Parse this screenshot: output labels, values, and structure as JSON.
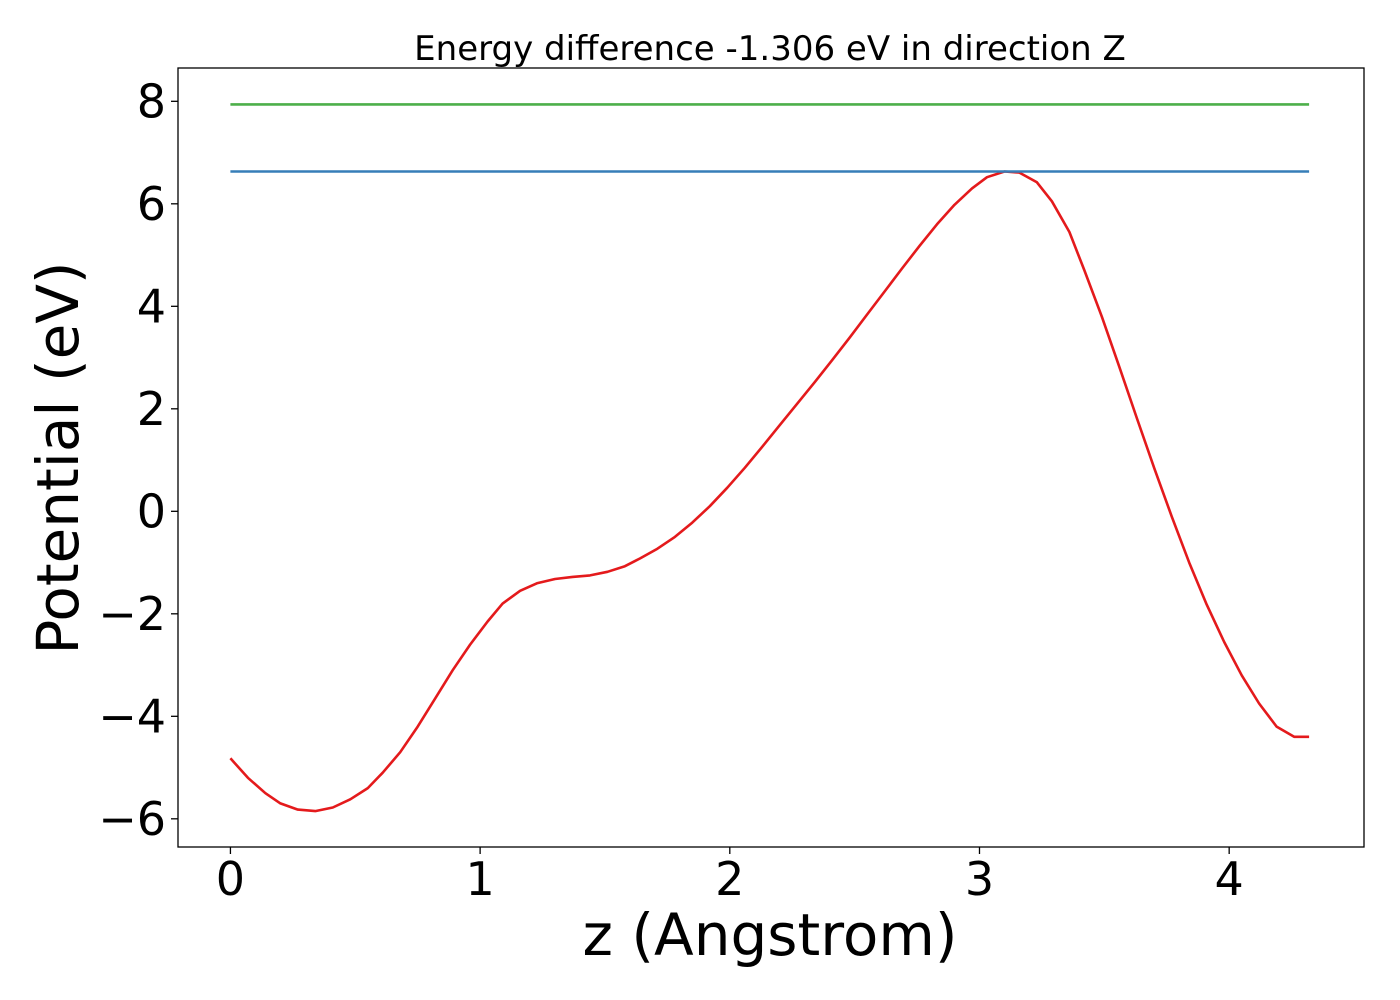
{
  "chart_data": {
    "type": "line",
    "title": "Energy difference -1.306 eV in direction Z",
    "xlabel": "z (Angstrom)",
    "ylabel": "Potential (eV)",
    "xlim": [
      -0.21,
      4.54
    ],
    "ylim": [
      -6.55,
      8.65
    ],
    "xticks": [
      0,
      1,
      2,
      3,
      4
    ],
    "yticks": [
      -6,
      -4,
      -2,
      0,
      2,
      4,
      6,
      8
    ],
    "xtick_labels": [
      "0",
      "1",
      "2",
      "3",
      "4"
    ],
    "ytick_labels": [
      "−6",
      "−4",
      "−2",
      "0",
      "2",
      "4",
      "6",
      "8"
    ],
    "grid": false,
    "series": [
      {
        "color": "#e41a1c",
        "x": [
          0.0,
          0.07,
          0.14,
          0.2,
          0.27,
          0.34,
          0.41,
          0.48,
          0.55,
          0.61,
          0.68,
          0.75,
          0.82,
          0.89,
          0.96,
          1.03,
          1.09,
          1.16,
          1.23,
          1.3,
          1.37,
          1.44,
          1.51,
          1.58,
          1.64,
          1.71,
          1.78,
          1.85,
          1.92,
          1.99,
          2.06,
          2.13,
          2.2,
          2.27,
          2.34,
          2.41,
          2.48,
          2.55,
          2.62,
          2.69,
          2.76,
          2.83,
          2.9,
          2.97,
          3.03,
          3.1,
          3.16,
          3.23,
          3.29,
          3.36,
          3.42,
          3.49,
          3.56,
          3.63,
          3.7,
          3.77,
          3.84,
          3.91,
          3.98,
          4.05,
          4.12,
          4.19,
          4.26,
          4.32
        ],
        "y": [
          -4.82,
          -5.2,
          -5.5,
          -5.7,
          -5.82,
          -5.85,
          -5.78,
          -5.62,
          -5.4,
          -5.1,
          -4.7,
          -4.2,
          -3.65,
          -3.1,
          -2.6,
          -2.15,
          -1.8,
          -1.55,
          -1.4,
          -1.32,
          -1.28,
          -1.25,
          -1.18,
          -1.07,
          -0.92,
          -0.73,
          -0.5,
          -0.22,
          0.1,
          0.46,
          0.85,
          1.26,
          1.68,
          2.1,
          2.52,
          2.95,
          3.39,
          3.84,
          4.29,
          4.74,
          5.18,
          5.6,
          5.98,
          6.3,
          6.52,
          6.63,
          6.61,
          6.42,
          6.05,
          5.45,
          4.7,
          3.8,
          2.82,
          1.82,
          0.84,
          -0.1,
          -1.0,
          -1.82,
          -2.55,
          -3.2,
          -3.75,
          -4.2,
          -4.4,
          -4.4
        ]
      },
      {
        "color": "#377eb8",
        "x": [
          0.0,
          4.32
        ],
        "y": [
          6.63,
          6.63
        ]
      },
      {
        "color": "#4daf4a",
        "x": [
          0.0,
          4.32
        ],
        "y": [
          7.94,
          7.94
        ]
      }
    ]
  }
}
